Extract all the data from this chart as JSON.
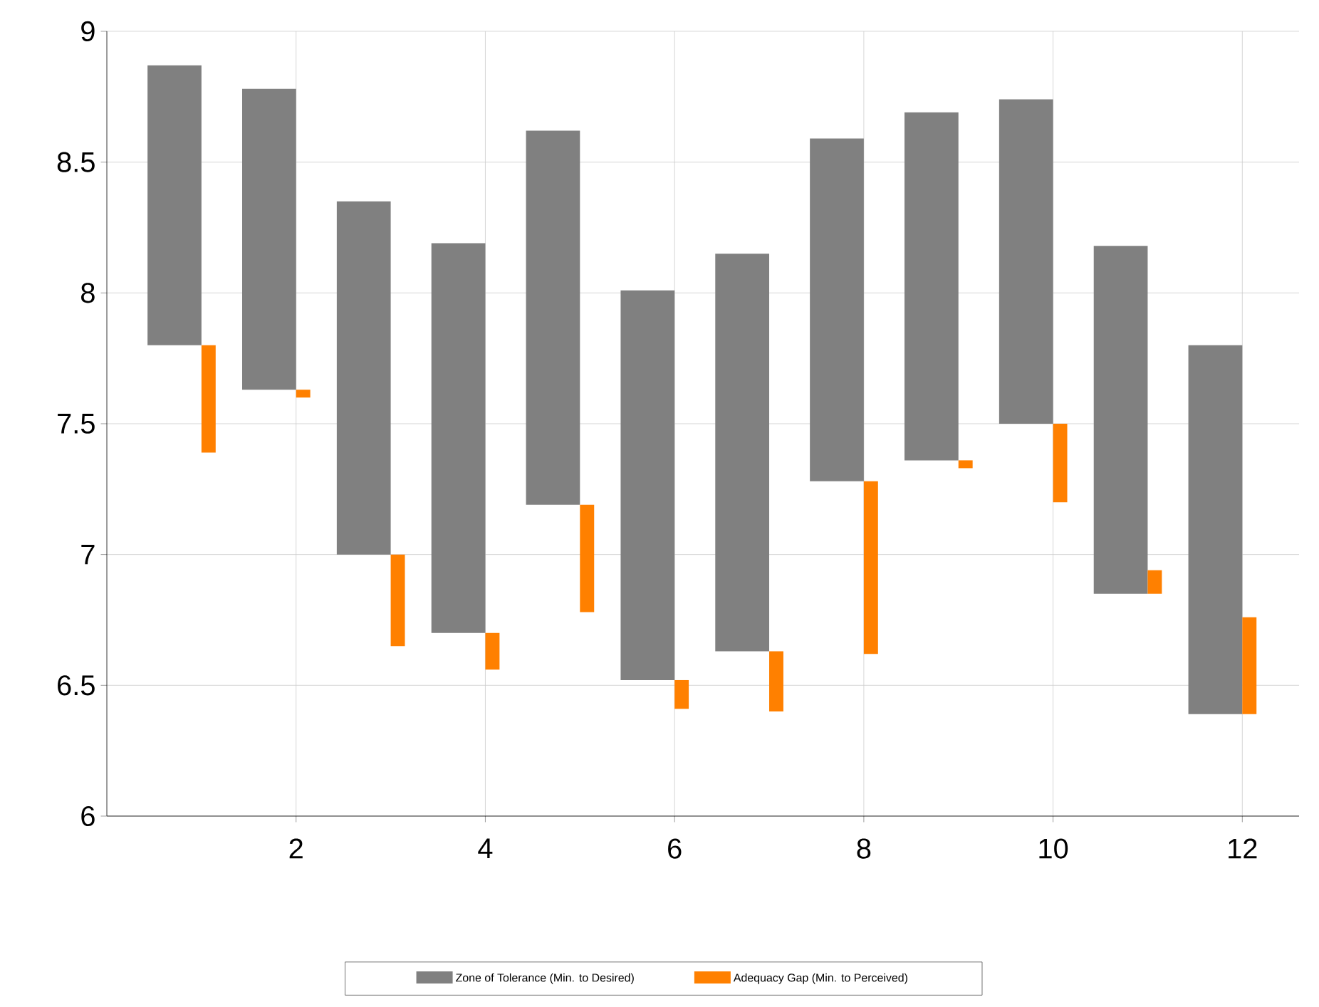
{
  "chart_data": {
    "type": "bar",
    "x": [
      1,
      2,
      3,
      4,
      5,
      6,
      7,
      8,
      9,
      10,
      11,
      12
    ],
    "series": [
      {
        "name": "Zone of Tolerance (Min. to Desired)",
        "color": "#808080",
        "base": [
          7.8,
          7.63,
          7.0,
          6.7,
          7.19,
          6.52,
          6.63,
          7.28,
          7.36,
          7.5,
          6.85,
          6.39
        ],
        "values": [
          1.07,
          1.15,
          1.35,
          1.49,
          1.43,
          1.49,
          1.52,
          1.31,
          1.33,
          1.24,
          1.33,
          1.41
        ]
      },
      {
        "name": "Adequacy Gap (Min. to Perceived)",
        "color": "#ff8000",
        "base": [
          7.8,
          7.63,
          7.0,
          6.7,
          7.19,
          6.52,
          6.63,
          7.28,
          7.36,
          7.5,
          6.85,
          6.39
        ],
        "values": [
          -0.41,
          -0.03,
          -0.35,
          -0.14,
          -0.41,
          -0.11,
          -0.23,
          -0.66,
          -0.03,
          -0.3,
          0.09,
          0.37
        ]
      }
    ],
    "xlim": [
      0,
      12.6
    ],
    "ylim": [
      6,
      9
    ],
    "xticks": [
      2,
      4,
      6,
      8,
      10,
      12
    ],
    "yticks": [
      6,
      6.5,
      7,
      7.5,
      8,
      8.5,
      9
    ],
    "grid": true,
    "legend": "bottom"
  }
}
